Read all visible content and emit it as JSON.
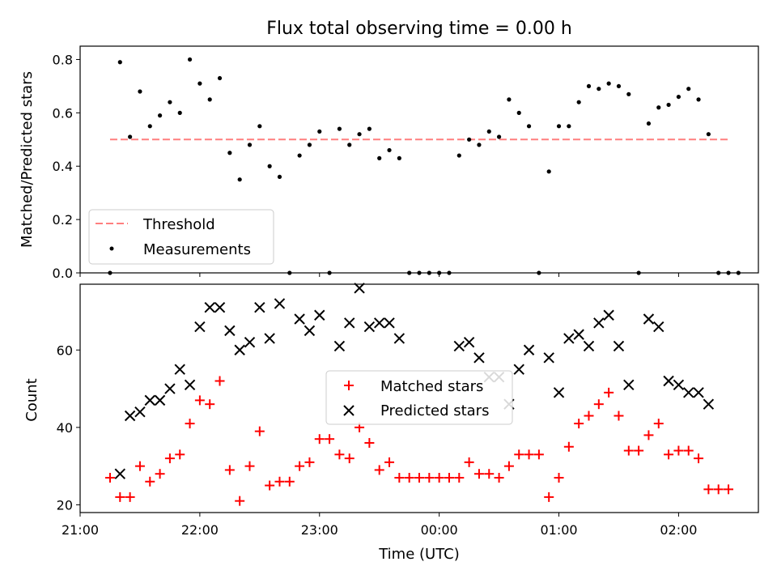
{
  "chart_data": [
    {
      "type": "scatter",
      "title": "Flux total observing time = 0.00 h",
      "ylabel": "Matched/Predicted stars",
      "xlim": [
        "21:00",
        "02:40"
      ],
      "ylim": [
        0,
        0.85
      ],
      "yticks": [
        "0.0",
        "0.2",
        "0.4",
        "0.6",
        "0.8"
      ],
      "grid": false,
      "legend": "lower-left",
      "threshold": {
        "name": "Threshold",
        "value": 0.5,
        "x_range": [
          "21:15",
          "02:25"
        ],
        "color": "#ff7f7f"
      },
      "series": [
        {
          "name": "Measurements",
          "color": "#000000",
          "marker": "dot",
          "x": [
            "21:15",
            "21:20",
            "21:25",
            "21:30",
            "21:35",
            "21:40",
            "21:45",
            "21:50",
            "21:55",
            "22:00",
            "22:05",
            "22:10",
            "22:15",
            "22:20",
            "22:25",
            "22:30",
            "22:35",
            "22:40",
            "22:45",
            "22:50",
            "22:55",
            "23:00",
            "23:05",
            "23:10",
            "23:15",
            "23:20",
            "23:25",
            "23:30",
            "23:35",
            "23:40",
            "23:45",
            "23:50",
            "23:55",
            "00:00",
            "00:05",
            "00:10",
            "00:15",
            "00:20",
            "00:25",
            "00:30",
            "00:35",
            "00:40",
            "00:45",
            "00:50",
            "00:55",
            "01:00",
            "01:05",
            "01:10",
            "01:15",
            "01:20",
            "01:25",
            "01:30",
            "01:35",
            "01:40",
            "01:45",
            "01:50",
            "01:55",
            "02:00",
            "02:05",
            "02:10",
            "02:15",
            "02:20",
            "02:25",
            "02:30"
          ],
          "y": [
            0.0,
            0.79,
            0.51,
            0.68,
            0.55,
            0.59,
            0.64,
            0.6,
            0.8,
            0.71,
            0.65,
            0.73,
            0.45,
            0.35,
            0.48,
            0.55,
            0.4,
            0.36,
            0.0,
            0.44,
            0.48,
            0.53,
            0.0,
            0.54,
            0.48,
            0.52,
            0.54,
            0.43,
            0.46,
            0.43,
            0.0,
            0.0,
            0.0,
            0.0,
            0.0,
            0.44,
            0.5,
            0.48,
            0.53,
            0.51,
            0.65,
            0.6,
            0.55,
            0.0,
            0.38,
            0.55,
            0.55,
            0.64,
            0.7,
            0.69,
            0.71,
            0.7,
            0.67,
            0.0,
            0.56,
            0.62,
            0.63,
            0.66,
            0.69,
            0.65,
            0.52,
            0.0,
            0.0,
            0.0
          ]
        }
      ]
    },
    {
      "type": "scatter",
      "xlabel": "Time (UTC)",
      "ylabel": "Count",
      "xlim": [
        "21:00",
        "02:40"
      ],
      "xticks": [
        "21:00",
        "22:00",
        "23:00",
        "00:00",
        "01:00",
        "02:00"
      ],
      "ylim": [
        18,
        77
      ],
      "yticks": [
        "20",
        "40",
        "60"
      ],
      "grid": false,
      "legend": "center",
      "series": [
        {
          "name": "Matched stars",
          "color": "#ff0000",
          "marker": "plus",
          "x": [
            "21:15",
            "21:20",
            "21:25",
            "21:30",
            "21:35",
            "21:40",
            "21:45",
            "21:50",
            "21:55",
            "22:00",
            "22:05",
            "22:10",
            "22:15",
            "22:20",
            "22:25",
            "22:30",
            "22:35",
            "22:40",
            "22:45",
            "22:50",
            "22:55",
            "23:00",
            "23:05",
            "23:10",
            "23:15",
            "23:20",
            "23:25",
            "23:30",
            "23:35",
            "23:40",
            "23:45",
            "23:50",
            "23:55",
            "00:00",
            "00:05",
            "00:10",
            "00:15",
            "00:20",
            "00:25",
            "00:30",
            "00:35",
            "00:40",
            "00:45",
            "00:50",
            "00:55",
            "01:00",
            "01:05",
            "01:10",
            "01:15",
            "01:20",
            "01:25",
            "01:30",
            "01:35",
            "01:40",
            "01:45",
            "01:50",
            "01:55",
            "02:00",
            "02:05",
            "02:10",
            "02:15",
            "02:20",
            "02:25"
          ],
          "y": [
            27,
            22,
            22,
            30,
            26,
            28,
            32,
            33,
            41,
            47,
            46,
            52,
            29,
            21,
            30,
            39,
            25,
            26,
            26,
            30,
            31,
            37,
            37,
            33,
            32,
            40,
            36,
            29,
            31,
            27,
            27,
            27,
            27,
            27,
            27,
            27,
            31,
            28,
            28,
            27,
            30,
            33,
            33,
            33,
            22,
            27,
            35,
            41,
            43,
            46,
            49,
            43,
            34,
            34,
            38,
            41,
            33,
            34,
            34,
            32,
            24,
            24,
            24
          ]
        },
        {
          "name": "Predicted stars",
          "color": "#000000",
          "marker": "x",
          "x": [
            "21:20",
            "21:25",
            "21:30",
            "21:35",
            "21:40",
            "21:45",
            "21:50",
            "21:55",
            "22:00",
            "22:05",
            "22:10",
            "22:15",
            "22:20",
            "22:25",
            "22:30",
            "22:35",
            "22:40",
            "22:50",
            "22:55",
            "23:00",
            "23:10",
            "23:15",
            "23:20",
            "23:25",
            "23:30",
            "23:35",
            "23:40",
            "00:10",
            "00:15",
            "00:20",
            "00:25",
            "00:30",
            "00:35",
            "00:40",
            "00:45",
            "00:55",
            "01:00",
            "01:05",
            "01:10",
            "01:15",
            "01:20",
            "01:25",
            "01:30",
            "01:35",
            "01:45",
            "01:50",
            "01:55",
            "02:00",
            "02:05",
            "02:10",
            "02:15"
          ],
          "y": [
            28,
            43,
            44,
            47,
            47,
            50,
            55,
            51,
            66,
            71,
            71,
            65,
            60,
            62,
            71,
            63,
            72,
            68,
            65,
            69,
            61,
            67,
            76,
            66,
            67,
            67,
            63,
            61,
            62,
            58,
            53,
            53,
            46,
            55,
            60,
            58,
            49,
            63,
            64,
            61,
            67,
            69,
            61,
            51,
            68,
            66,
            52,
            51,
            49,
            49,
            46
          ]
        }
      ]
    }
  ]
}
